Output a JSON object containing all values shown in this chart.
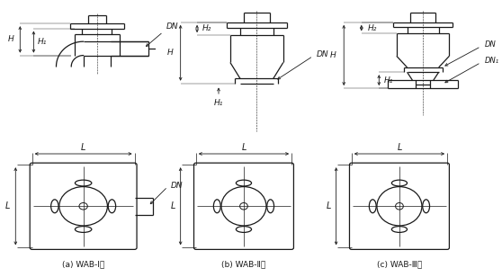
{
  "bg_color": "#ffffff",
  "lc": "#1a1a1a",
  "fig_w": 5.58,
  "fig_h": 3.08,
  "label_a": "(a) WAB-Ⅰ型",
  "label_b": "(b) WAB-Ⅱ型",
  "label_c": "(c) WAB-Ⅲ型",
  "H": "H",
  "H1": "H₁",
  "H2": "H₂",
  "DN": "DN",
  "DN1": "DN₁",
  "L": "L"
}
